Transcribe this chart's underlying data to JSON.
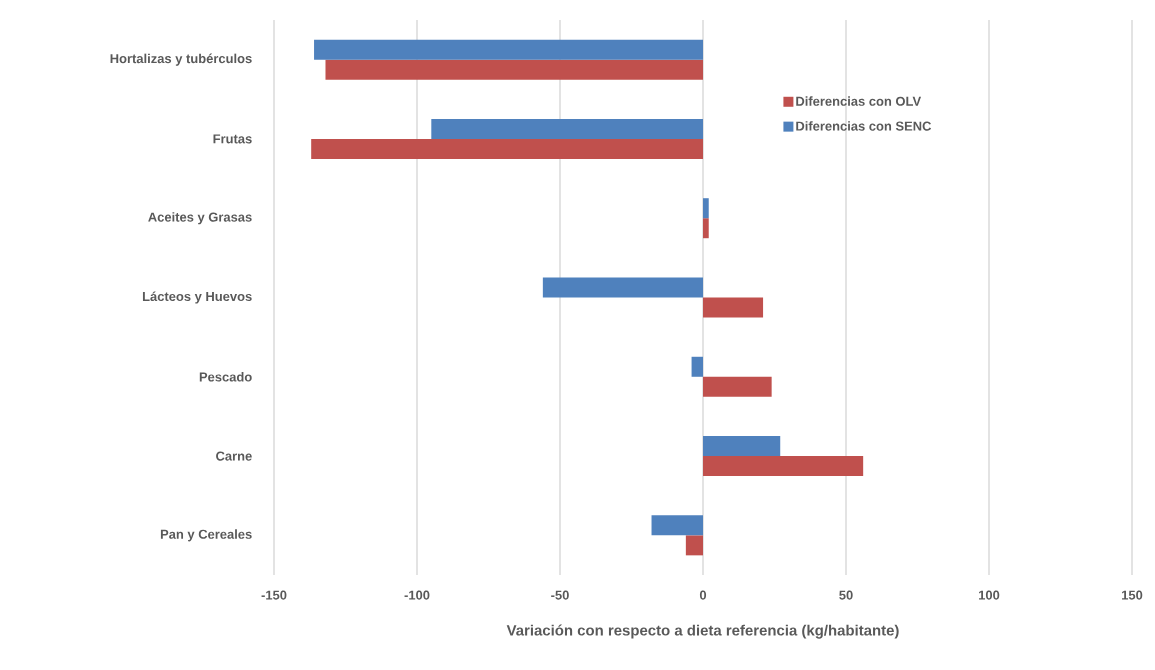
{
  "chart_data": {
    "type": "bar",
    "orientation": "horizontal",
    "xlabel": "Variación con respecto a dieta referencia (kg/habitante)",
    "categories": [
      "Hortalizas y tubérculos",
      "Frutas",
      "Aceites y Grasas",
      "Lácteos y Huevos",
      "Pescado",
      "Carne",
      "Pan y Cereales"
    ],
    "series": [
      {
        "name": "Diferencias con OLV",
        "color": "#c0504d",
        "values": [
          -132,
          -137,
          2,
          21,
          24,
          56,
          -6
        ]
      },
      {
        "name": "Diferencias con SENC",
        "color": "#4f81bd",
        "values": [
          -136,
          -95,
          2,
          -56,
          -4,
          27,
          -18
        ]
      }
    ],
    "xlim": [
      -150,
      150
    ],
    "xticks": [
      -150,
      -100,
      -50,
      0,
      50,
      100,
      150
    ],
    "grid": "x",
    "legend": "top right"
  }
}
